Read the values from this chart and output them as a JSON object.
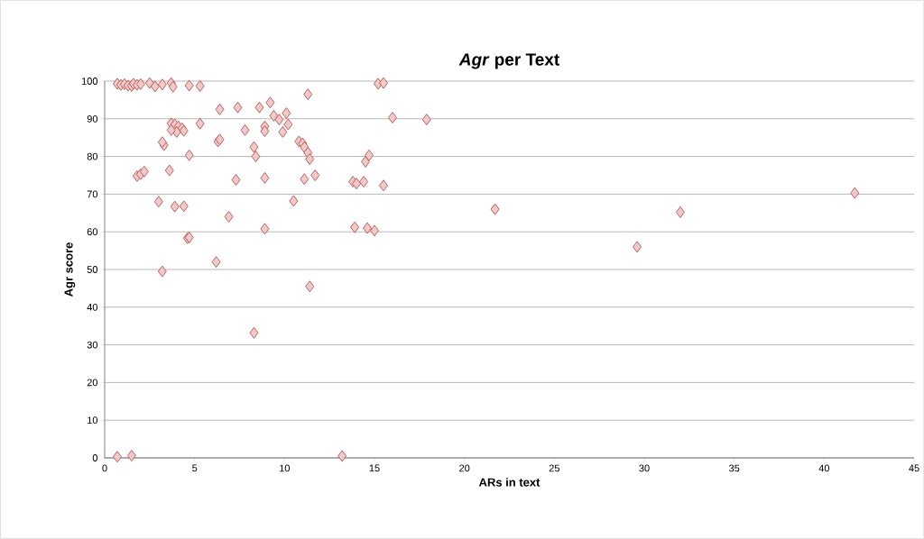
{
  "chart_data": {
    "type": "scatter",
    "title": "*Agr* per Text",
    "xlabel": "ARs in text",
    "ylabel": "Agr score",
    "xlim": [
      0,
      45
    ],
    "ylim": [
      0,
      100
    ],
    "xticks": [
      0,
      5,
      10,
      15,
      20,
      25,
      30,
      35,
      40,
      45
    ],
    "yticks": [
      0,
      10,
      20,
      30,
      40,
      50,
      60,
      70,
      80,
      90,
      100
    ],
    "grid": "y",
    "marker": "diamond",
    "series": [
      {
        "color": "#c0504d",
        "x": [
          0.7,
          0.9,
          1.1,
          1.3,
          1.5,
          1.6,
          1.8,
          2.0,
          2.5,
          2.8,
          3.2,
          3.7,
          3.8,
          4.7,
          5.3,
          3.3,
          3.2,
          3.7,
          3.9,
          4.1,
          4.3,
          4.0,
          4.4,
          3.7,
          3.6,
          3.0,
          3.9,
          4.4,
          4.6,
          4.7,
          3.2,
          4.7,
          5.3,
          1.8,
          2.0,
          2.2,
          0.7,
          1.5,
          6.4,
          6.3,
          6.4,
          7.4,
          7.8,
          7.3,
          6.9,
          6.2,
          8.3,
          8.4,
          8.3,
          8.6,
          8.9,
          8.9,
          9.2,
          9.4,
          9.7,
          9.9,
          10.1,
          10.2,
          8.9,
          8.9,
          10.5,
          10.8,
          11.0,
          11.1,
          11.3,
          11.4,
          11.1,
          11.7,
          11.4,
          11.3,
          13.2,
          13.8,
          14.0,
          14.4,
          13.9,
          14.6,
          15.0,
          14.5,
          14.7,
          15.5,
          15.2,
          15.5,
          16.0,
          17.9,
          21.7,
          29.6,
          32.0,
          41.7
        ],
        "values": [
          99.3,
          99,
          99.2,
          98.8,
          98.7,
          99.3,
          99,
          99.2,
          99.5,
          98.6,
          99.1,
          99.5,
          98.5,
          98.8,
          98.7,
          83,
          83.8,
          88.8,
          88.5,
          88,
          87.5,
          86.5,
          86.8,
          87,
          76.3,
          68,
          66.7,
          66.8,
          58.3,
          58.5,
          49.5,
          80.3,
          88.7,
          74.8,
          75.3,
          76,
          0.3,
          0.6,
          92.5,
          84,
          84.5,
          93,
          87,
          73.8,
          64,
          52,
          82.5,
          80,
          33.2,
          93,
          88,
          86.7,
          94.3,
          90.8,
          89.8,
          86.5,
          91.5,
          88.5,
          74.3,
          60.8,
          68.2,
          84,
          83.5,
          82.5,
          81,
          79.3,
          74,
          75,
          45.5,
          96.5,
          0.5,
          73.3,
          72.8,
          73.3,
          61.2,
          61,
          60.3,
          78.6,
          80.3,
          72.3,
          99.3,
          99.5,
          90.3,
          89.8,
          66,
          56,
          65.2,
          70.3
        ]
      }
    ]
  }
}
